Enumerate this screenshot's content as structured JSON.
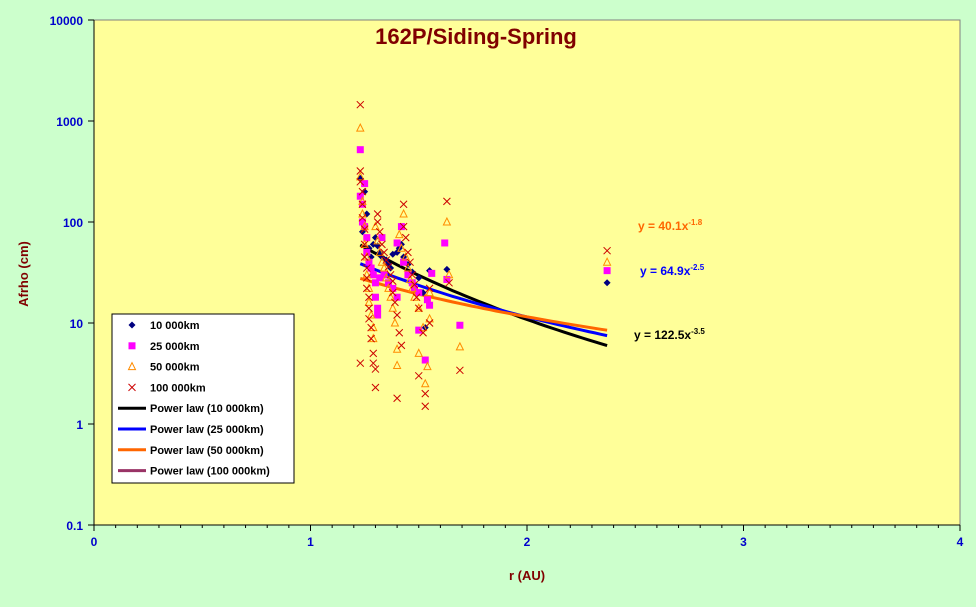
{
  "chart_data": {
    "type": "scatter",
    "title": "162P/Siding-Spring",
    "xlabel": "r (AU)",
    "ylabel": "Afrho (cm)",
    "xlim": [
      0,
      4
    ],
    "ylim": [
      0.1,
      10000
    ],
    "yscale": "log",
    "x_ticks": [
      "0",
      "1",
      "2",
      "3",
      "4"
    ],
    "y_ticks": [
      "0.1",
      "1",
      "10",
      "100",
      "1000",
      "10000"
    ],
    "grid": false,
    "legend_position": "left-middle",
    "colors": {
      "page_background": "#ccffcc",
      "plot_background": "#ffff99",
      "title": "#800000",
      "axis_label": "#800000",
      "tick_label": "#0000cc"
    },
    "series": [
      {
        "name": "10 000km",
        "marker": "diamond",
        "color": "#000080",
        "points": [
          [
            1.23,
            270
          ],
          [
            1.24,
            80
          ],
          [
            1.25,
            200
          ],
          [
            1.26,
            120
          ],
          [
            1.27,
            55
          ],
          [
            1.28,
            45
          ],
          [
            1.29,
            60
          ],
          [
            1.3,
            70
          ],
          [
            1.31,
            58
          ],
          [
            1.32,
            50
          ],
          [
            1.33,
            45
          ],
          [
            1.35,
            42
          ],
          [
            1.36,
            38
          ],
          [
            1.37,
            35
          ],
          [
            1.38,
            48
          ],
          [
            1.4,
            50
          ],
          [
            1.41,
            55
          ],
          [
            1.42,
            60
          ],
          [
            1.43,
            45
          ],
          [
            1.45,
            38
          ],
          [
            1.47,
            32
          ],
          [
            1.5,
            28
          ],
          [
            1.52,
            20
          ],
          [
            1.53,
            9
          ],
          [
            1.55,
            33
          ],
          [
            1.63,
            34
          ],
          [
            2.37,
            25
          ]
        ]
      },
      {
        "name": "25 000km",
        "marker": "square",
        "color": "#ff00ff",
        "points": [
          [
            1.23,
            520
          ],
          [
            1.23,
            180
          ],
          [
            1.24,
            150
          ],
          [
            1.24,
            100
          ],
          [
            1.25,
            90
          ],
          [
            1.25,
            240
          ],
          [
            1.26,
            70
          ],
          [
            1.26,
            50
          ],
          [
            1.27,
            40
          ],
          [
            1.28,
            35
          ],
          [
            1.29,
            30
          ],
          [
            1.3,
            25
          ],
          [
            1.3,
            18
          ],
          [
            1.31,
            14
          ],
          [
            1.31,
            12
          ],
          [
            1.32,
            28
          ],
          [
            1.33,
            70
          ],
          [
            1.34,
            30
          ],
          [
            1.36,
            25
          ],
          [
            1.38,
            22
          ],
          [
            1.4,
            62
          ],
          [
            1.4,
            18
          ],
          [
            1.42,
            90
          ],
          [
            1.43,
            40
          ],
          [
            1.45,
            30
          ],
          [
            1.47,
            25
          ],
          [
            1.48,
            22
          ],
          [
            1.5,
            20
          ],
          [
            1.5,
            8.5
          ],
          [
            1.53,
            4.3
          ],
          [
            1.54,
            17
          ],
          [
            1.55,
            15
          ],
          [
            1.56,
            31
          ],
          [
            1.62,
            62
          ],
          [
            1.63,
            27
          ],
          [
            1.69,
            9.5
          ],
          [
            2.37,
            33
          ]
        ]
      },
      {
        "name": "50 000km",
        "marker": "triangle",
        "color": "#ff8c00",
        "points": [
          [
            1.23,
            850
          ],
          [
            1.23,
            280
          ],
          [
            1.24,
            160
          ],
          [
            1.24,
            120
          ],
          [
            1.25,
            90
          ],
          [
            1.25,
            60
          ],
          [
            1.26,
            45
          ],
          [
            1.26,
            30
          ],
          [
            1.27,
            22
          ],
          [
            1.27,
            16
          ],
          [
            1.28,
            12
          ],
          [
            1.29,
            9
          ],
          [
            1.29,
            7
          ],
          [
            1.3,
            90
          ],
          [
            1.31,
            65
          ],
          [
            1.32,
            50
          ],
          [
            1.33,
            40
          ],
          [
            1.34,
            35
          ],
          [
            1.35,
            28
          ],
          [
            1.36,
            22
          ],
          [
            1.37,
            18
          ],
          [
            1.38,
            14
          ],
          [
            1.39,
            10
          ],
          [
            1.4,
            3.8
          ],
          [
            1.4,
            5.5
          ],
          [
            1.41,
            75
          ],
          [
            1.42,
            55
          ],
          [
            1.43,
            120
          ],
          [
            1.44,
            45
          ],
          [
            1.45,
            35
          ],
          [
            1.46,
            27
          ],
          [
            1.47,
            22
          ],
          [
            1.48,
            18
          ],
          [
            1.5,
            14
          ],
          [
            1.5,
            5
          ],
          [
            1.52,
            9
          ],
          [
            1.53,
            2.5
          ],
          [
            1.54,
            3.7
          ],
          [
            1.55,
            11
          ],
          [
            1.55,
            20
          ],
          [
            1.63,
            100
          ],
          [
            1.64,
            30
          ],
          [
            1.69,
            5.8
          ],
          [
            2.37,
            40
          ]
        ]
      },
      {
        "name": "100 000km",
        "marker": "x",
        "color": "#cc0000",
        "points": [
          [
            1.23,
            1450
          ],
          [
            1.23,
            320
          ],
          [
            1.23,
            250
          ],
          [
            1.24,
            200
          ],
          [
            1.24,
            150
          ],
          [
            1.24,
            110
          ],
          [
            1.25,
            85
          ],
          [
            1.25,
            60
          ],
          [
            1.25,
            45
          ],
          [
            1.26,
            35
          ],
          [
            1.26,
            28
          ],
          [
            1.26,
            22
          ],
          [
            1.27,
            18
          ],
          [
            1.27,
            14
          ],
          [
            1.27,
            11
          ],
          [
            1.28,
            9
          ],
          [
            1.28,
            7
          ],
          [
            1.29,
            5
          ],
          [
            1.29,
            4
          ],
          [
            1.23,
            4
          ],
          [
            1.3,
            3.5
          ],
          [
            1.3,
            2.3
          ],
          [
            1.31,
            120
          ],
          [
            1.31,
            100
          ],
          [
            1.32,
            80
          ],
          [
            1.33,
            60
          ],
          [
            1.34,
            50
          ],
          [
            1.35,
            42
          ],
          [
            1.36,
            36
          ],
          [
            1.37,
            30
          ],
          [
            1.38,
            26
          ],
          [
            1.38,
            20
          ],
          [
            1.39,
            16
          ],
          [
            1.4,
            12
          ],
          [
            1.4,
            1.8
          ],
          [
            1.41,
            8
          ],
          [
            1.42,
            6
          ],
          [
            1.43,
            150
          ],
          [
            1.43,
            90
          ],
          [
            1.44,
            70
          ],
          [
            1.45,
            50
          ],
          [
            1.46,
            40
          ],
          [
            1.47,
            30
          ],
          [
            1.48,
            24
          ],
          [
            1.49,
            18
          ],
          [
            1.5,
            14
          ],
          [
            1.5,
            3
          ],
          [
            1.52,
            8
          ],
          [
            1.53,
            1.5
          ],
          [
            1.53,
            2
          ],
          [
            1.55,
            10
          ],
          [
            1.55,
            22
          ],
          [
            1.63,
            160
          ],
          [
            1.64,
            25
          ],
          [
            1.69,
            3.4
          ],
          [
            2.37,
            52
          ]
        ]
      }
    ],
    "trendlines": [
      {
        "name": "Power law (10 000km)",
        "color": "#000000",
        "a": 122.5,
        "b": -3.5,
        "x_range": [
          1.23,
          2.37
        ],
        "label_a": "122.5",
        "label_b": "-3.5"
      },
      {
        "name": "Power law (25 000km)",
        "color": "#0000ff",
        "a": 64.9,
        "b": -2.5,
        "x_range": [
          1.23,
          2.37
        ],
        "label_a": "64.9",
        "label_b": "-2.5"
      },
      {
        "name": "Power law (50 000km)",
        "color": "#ff6600",
        "a": 40.1,
        "b": -1.8,
        "x_range": [
          1.23,
          2.37
        ],
        "label_a": "40.1",
        "label_b": "-1.8"
      },
      {
        "name": "Power law (100 000km)",
        "color": "#993366"
      }
    ]
  }
}
